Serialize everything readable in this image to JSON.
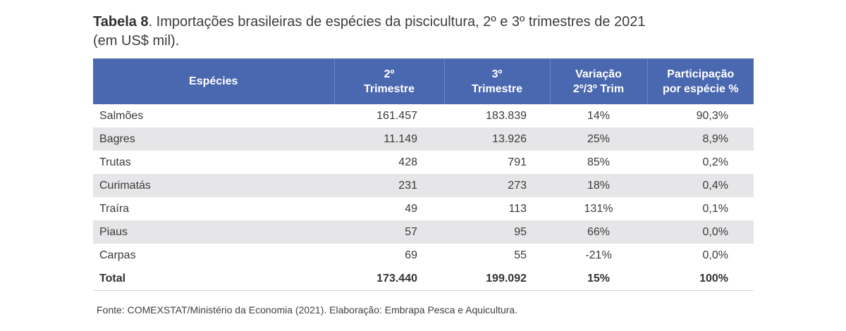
{
  "caption": {
    "label": "Tabela 8",
    "text": ". Importações brasileiras de espécies da piscicultura, 2º e 3º trimestres de 2021",
    "line2": "(em US$ mil)."
  },
  "table": {
    "headers": [
      {
        "line1": "Espécies",
        "line2": ""
      },
      {
        "line1": "2º",
        "line2": "Trimestre"
      },
      {
        "line1": "3º",
        "line2": "Trimestre"
      },
      {
        "line1": "Variação",
        "line2": "2º/3º Trim"
      },
      {
        "line1": "Participação",
        "line2": "por espécie %"
      }
    ],
    "rows": [
      [
        "Salmões",
        "161.457",
        "183.839",
        "14%",
        "90,3%"
      ],
      [
        "Bagres",
        "11.149",
        "13.926",
        "25%",
        "8,9%"
      ],
      [
        "Trutas",
        "428",
        "791",
        "85%",
        "0,2%"
      ],
      [
        "Curimatás",
        "231",
        "273",
        "18%",
        "0,4%"
      ],
      [
        "Traíra",
        "49",
        "113",
        "131%",
        "0,1%"
      ],
      [
        "Piaus",
        "57",
        "95",
        "66%",
        "0,0%"
      ],
      [
        "Carpas",
        "69",
        "55",
        "-21%",
        "0,0%"
      ]
    ],
    "total": [
      "Total",
      "173.440",
      "199.092",
      "15%",
      "100%"
    ]
  },
  "source": "Fonte: COMEXSTAT/Ministério da Economia (2021). Elaboração: Embrapa Pesca e Aquicultura.",
  "colors": {
    "header_bg": "#4a68b0",
    "alt_row_bg": "#e6e6e8"
  }
}
